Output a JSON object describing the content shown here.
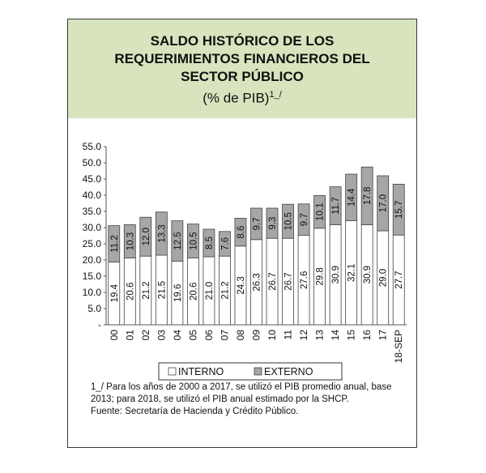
{
  "title_lines": [
    "SALDO HISTÓRICO DE LOS",
    "REQUERIMIENTOS FINANCIEROS DEL",
    "SECTOR PÚBLICO"
  ],
  "subtitle_main": "(% de PIB)",
  "subtitle_sup": "1_/",
  "footnote": "1_/ Para los años de 2000 a 2017, se utilizó el PIB promedio anual, base 2013; para 2018, se utilizó el PIB anual estimado por la SHCP.",
  "source": "Fuente: Secretaría de Hacienda y Crédito Público.",
  "colors": {
    "interno": "#ffffff",
    "externo": "#a6a6a6",
    "header_bg": "#d7e4bd"
  },
  "chart_data": {
    "type": "bar",
    "stacked": true,
    "categories": [
      "00",
      "01",
      "02",
      "03",
      "04",
      "05",
      "06",
      "07",
      "08",
      "09",
      "10",
      "11",
      "12",
      "13",
      "14",
      "15",
      "16",
      "17",
      "18-SEP"
    ],
    "series": [
      {
        "name": "INTERNO",
        "values": [
          19.4,
          20.6,
          21.2,
          21.5,
          19.6,
          20.6,
          21.0,
          21.2,
          24.3,
          26.3,
          26.7,
          26.7,
          27.6,
          29.8,
          30.9,
          32.1,
          30.9,
          29.0,
          27.7
        ]
      },
      {
        "name": "EXTERNO",
        "values": [
          11.2,
          10.3,
          12.0,
          13.3,
          12.5,
          10.5,
          8.5,
          7.6,
          8.6,
          9.7,
          9.3,
          10.5,
          9.7,
          10.1,
          11.7,
          14.4,
          17.8,
          17.0,
          15.7
        ]
      }
    ],
    "value_labels": {
      "interno": [
        "19.4",
        "20.6",
        "21.2",
        "21.5",
        "19.6",
        "20.6",
        "21.0",
        "21.2",
        "24.3",
        "26.3",
        "26.7",
        "26.7",
        "27.6",
        "29.8",
        "30.9",
        "32.1",
        "30.9",
        "29.0",
        "27.7"
      ],
      "externo": [
        "11.2",
        "10.3",
        "12.0",
        "13.3",
        "12.5",
        "10.5",
        "8.5",
        "7.6",
        "8.6",
        "9.7",
        "9.3",
        "10.5",
        "9.7",
        "10.1",
        "11.7",
        "14.4",
        "17.8",
        "17.0",
        "15.7"
      ]
    },
    "ylim": [
      0,
      55
    ],
    "yticks": [
      "-",
      "5.0",
      "10.0",
      "15.0",
      "20.0",
      "25.0",
      "30.0",
      "35.0",
      "40.0",
      "45.0",
      "50.0",
      "55.0"
    ],
    "legend_position": "bottom"
  }
}
